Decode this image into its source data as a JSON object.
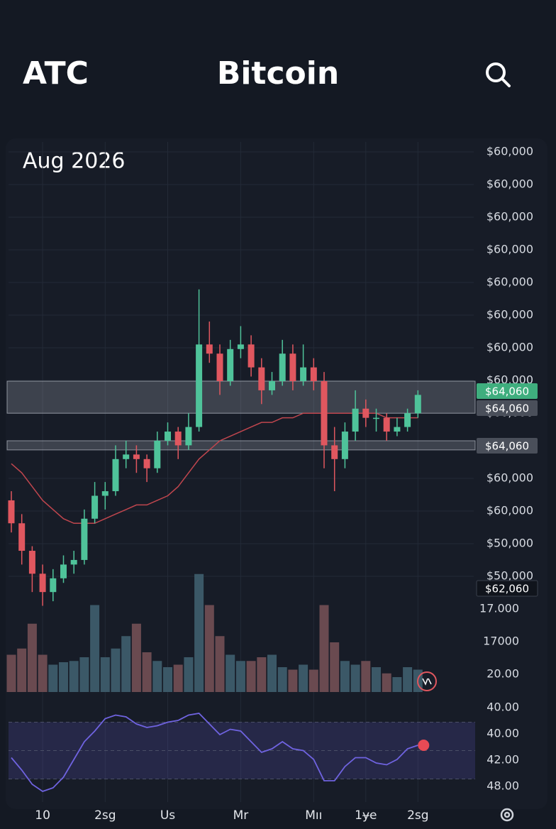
{
  "header": {
    "left": "ATC",
    "title": "Bitcoin"
  },
  "chart_data": {
    "type": "candlestick",
    "subtitle": "Aug 2026",
    "categories": [
      null,
      null,
      null,
      "10",
      null,
      null,
      null,
      null,
      null,
      "2sg",
      null,
      null,
      null,
      null,
      null,
      "Us",
      null,
      null,
      null,
      null,
      null,
      null,
      "Mr",
      null,
      null,
      null,
      null,
      null,
      null,
      "Mıı",
      null,
      null,
      null,
      null,
      "1ɏe",
      null,
      null,
      null,
      null,
      "2sg"
    ],
    "open": [
      24,
      19,
      13,
      8,
      4,
      7,
      10,
      11,
      20,
      25,
      26,
      33,
      34,
      33,
      31,
      37,
      39,
      36,
      40,
      58,
      56,
      50,
      57,
      58,
      53,
      48,
      50,
      56,
      50,
      53,
      50,
      36,
      33,
      39,
      44,
      42,
      42,
      39,
      40,
      43
    ],
    "high": [
      26,
      21,
      14,
      10,
      9,
      12,
      13,
      22,
      28,
      28,
      36,
      37,
      36,
      34,
      39,
      41,
      40,
      43,
      70,
      63,
      58,
      59,
      62,
      60,
      55,
      52,
      59,
      58,
      58,
      55,
      52,
      40,
      41,
      48,
      46,
      44,
      43,
      42,
      44,
      48
    ],
    "low": [
      17,
      10,
      4,
      1,
      2,
      6,
      8,
      10,
      19,
      22,
      25,
      31,
      30,
      28,
      30,
      36,
      33,
      35,
      39,
      54,
      47,
      49,
      55,
      51,
      45,
      47,
      49,
      48,
      49,
      48,
      31,
      26,
      31,
      37,
      40,
      39,
      37,
      38,
      39,
      42
    ],
    "close": [
      19,
      13,
      8,
      4,
      7,
      10,
      11,
      20,
      25,
      26,
      33,
      34,
      33,
      31,
      37,
      39,
      36,
      40,
      58,
      56,
      50,
      57,
      58,
      53,
      48,
      50,
      56,
      50,
      53,
      50,
      36,
      33,
      39,
      44,
      42,
      42,
      39,
      40,
      43,
      47
    ],
    "ylim": [
      0,
      100
    ],
    "up_color": "#4fc39a",
    "down_color": "#e0575f",
    "moving_average": {
      "values": [
        32,
        30,
        27,
        24,
        22,
        20,
        19,
        19,
        19,
        20,
        21,
        22,
        23,
        23,
        24,
        25,
        27,
        30,
        33,
        35,
        37,
        38,
        39,
        40,
        41,
        41,
        42,
        42,
        43,
        43,
        43,
        43,
        43,
        43,
        43,
        43,
        42,
        42,
        42,
        42
      ],
      "color": "#c0464e"
    },
    "zones": [
      [
        43,
        50
      ],
      [
        35,
        37
      ]
    ],
    "price_labels": [
      "$60,000",
      "$60,000",
      "$60,000",
      "$60,000",
      "$60,000",
      "$60,000",
      "$60,000",
      "$60,000",
      "$60,000",
      "$60,000",
      "$60,000",
      "$50,000",
      "$50,000"
    ],
    "price_badges": [
      {
        "label": "$64,060",
        "color": "#3fae7e"
      },
      {
        "label": "$64,060",
        "color": "#4a4f5a"
      },
      {
        "label": "$64,060",
        "color": "#4a4f5a"
      },
      {
        "label": "$62,060",
        "color": "#10141c"
      }
    ],
    "volume": {
      "values": [
        30,
        35,
        55,
        30,
        22,
        24,
        25,
        28,
        70,
        28,
        35,
        45,
        55,
        32,
        25,
        20,
        22,
        28,
        95,
        70,
        45,
        30,
        25,
        25,
        28,
        30,
        20,
        18,
        22,
        18,
        70,
        40,
        25,
        22,
        25,
        20,
        15,
        12,
        20,
        18
      ],
      "ylim": [
        0,
        100
      ],
      "labels": [
        "17.000",
        "17000",
        "20.00"
      ]
    },
    "rsi": {
      "values": [
        46,
        32,
        16,
        8,
        12,
        24,
        44,
        64,
        76,
        90,
        94,
        92,
        84,
        80,
        82,
        86,
        88,
        94,
        96,
        84,
        72,
        78,
        76,
        64,
        52,
        56,
        64,
        56,
        54,
        44,
        20,
        20,
        36,
        46,
        46,
        40,
        38,
        44,
        56,
        60
      ],
      "ylim": [
        0,
        100
      ],
      "bands": [
        22,
        54,
        86
      ],
      "color": "#6f63e0",
      "labels": [
        "40.00",
        "40.00",
        "42.00",
        "48.00"
      ]
    }
  }
}
